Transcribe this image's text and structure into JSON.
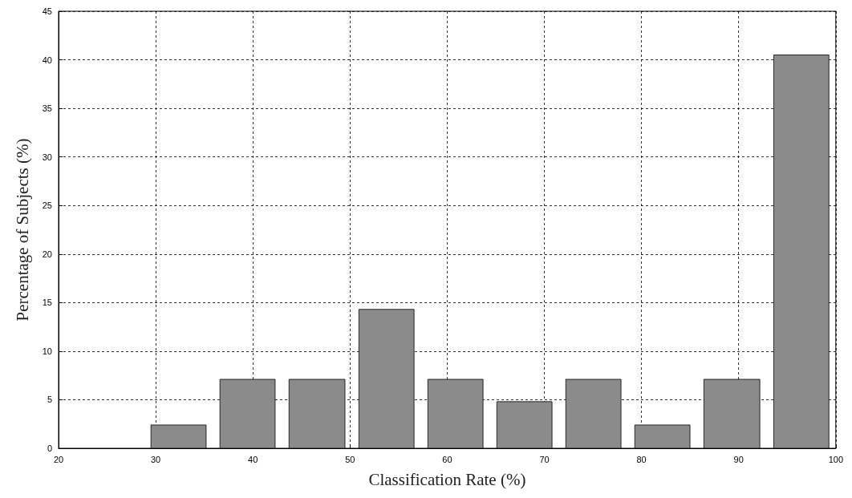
{
  "chart_data": {
    "type": "histogram",
    "xlabel": "Classification Rate (%)",
    "ylabel": "Percentage of Subjects (%)",
    "bins": [
      28.8,
      35.9,
      43.0,
      50.2,
      57.3,
      64.4,
      71.5,
      78.6,
      85.7,
      92.9,
      100.0
    ],
    "values": [
      2.4,
      7.1,
      7.1,
      14.3,
      7.1,
      4.8,
      7.1,
      2.4,
      7.1,
      40.5
    ],
    "color": "#8c8b8b",
    "xlim": [
      20,
      100
    ],
    "xticks": [
      20,
      30,
      40,
      50,
      60,
      70,
      80,
      90,
      100
    ],
    "ylim": [
      0,
      45
    ],
    "yticks": [
      0,
      5,
      10,
      15,
      20,
      25,
      30,
      35,
      40,
      45
    ],
    "grid": true
  }
}
